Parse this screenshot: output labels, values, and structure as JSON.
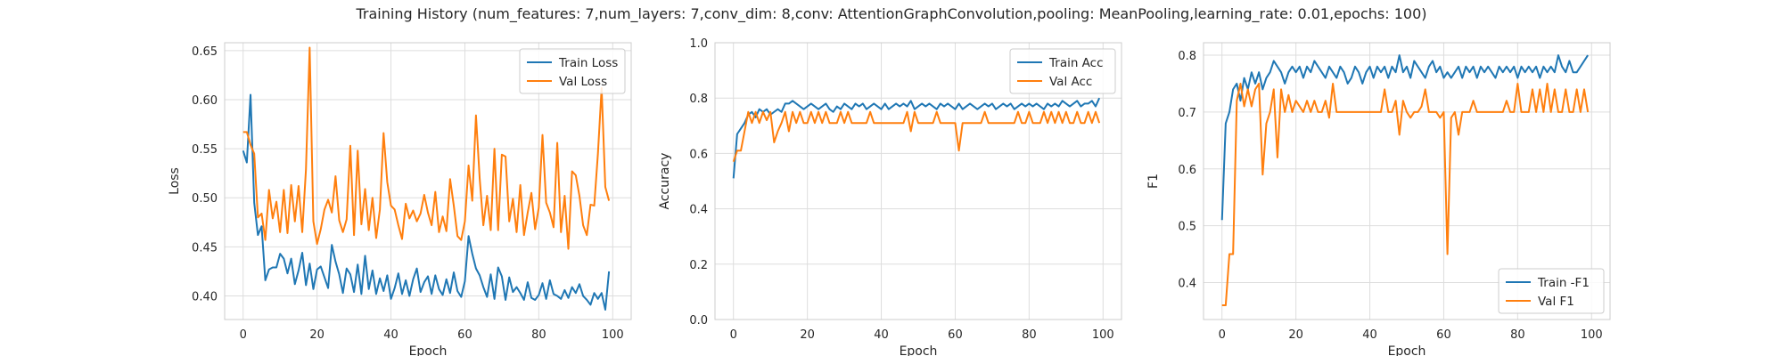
{
  "figure": {
    "title": "Training History (num_features: 7,num_layers: 7,conv_dim: 8,conv: AttentionGraphConvolution,pooling: MeanPooling,learning_rate: 0.01,epochs: 100)",
    "colors": {
      "blue": "#1f77b4",
      "orange": "#ff7f0e",
      "grid": "#dddddd",
      "spine": "#cccccc"
    }
  },
  "chart_data": [
    {
      "type": "line",
      "title": "",
      "xlabel": "Epoch",
      "ylabel": "Loss",
      "xlim": [
        -5,
        105
      ],
      "ylim": [
        0.376,
        0.658
      ],
      "xticks": [
        0,
        20,
        40,
        60,
        80,
        100
      ],
      "yticks": [
        0.4,
        0.45,
        0.5,
        0.55,
        0.6,
        0.65
      ],
      "ytick_decimals": 2,
      "grid": true,
      "legend_position": "top-right",
      "series": [
        {
          "name": "Train Loss",
          "color": "#1f77b4",
          "values": [
            0.548,
            0.536,
            0.605,
            0.495,
            0.462,
            0.471,
            0.416,
            0.427,
            0.429,
            0.429,
            0.443,
            0.438,
            0.423,
            0.438,
            0.412,
            0.426,
            0.444,
            0.411,
            0.433,
            0.407,
            0.427,
            0.43,
            0.419,
            0.408,
            0.452,
            0.435,
            0.422,
            0.403,
            0.428,
            0.422,
            0.404,
            0.432,
            0.402,
            0.441,
            0.407,
            0.426,
            0.402,
            0.418,
            0.405,
            0.421,
            0.397,
            0.408,
            0.423,
            0.402,
            0.416,
            0.4,
            0.417,
            0.428,
            0.404,
            0.414,
            0.42,
            0.402,
            0.421,
            0.407,
            0.401,
            0.417,
            0.403,
            0.424,
            0.405,
            0.399,
            0.415,
            0.461,
            0.443,
            0.428,
            0.421,
            0.409,
            0.399,
            0.422,
            0.397,
            0.429,
            0.42,
            0.396,
            0.419,
            0.404,
            0.409,
            0.403,
            0.396,
            0.414,
            0.398,
            0.396,
            0.401,
            0.413,
            0.397,
            0.416,
            0.402,
            0.4,
            0.397,
            0.406,
            0.398,
            0.409,
            0.403,
            0.412,
            0.4,
            0.396,
            0.391,
            0.403,
            0.397,
            0.403,
            0.386,
            0.425
          ]
        },
        {
          "name": "Val Loss",
          "color": "#ff7f0e",
          "values": [
            0.567,
            0.567,
            0.554,
            0.545,
            0.48,
            0.484,
            0.457,
            0.508,
            0.479,
            0.496,
            0.465,
            0.508,
            0.464,
            0.513,
            0.476,
            0.512,
            0.465,
            0.529,
            0.653,
            0.476,
            0.453,
            0.468,
            0.488,
            0.498,
            0.485,
            0.522,
            0.477,
            0.465,
            0.478,
            0.553,
            0.462,
            0.548,
            0.473,
            0.509,
            0.467,
            0.5,
            0.459,
            0.488,
            0.566,
            0.516,
            0.492,
            0.488,
            0.472,
            0.458,
            0.494,
            0.479,
            0.487,
            0.476,
            0.484,
            0.503,
            0.485,
            0.472,
            0.506,
            0.465,
            0.481,
            0.466,
            0.519,
            0.492,
            0.461,
            0.457,
            0.476,
            0.533,
            0.497,
            0.584,
            0.52,
            0.472,
            0.502,
            0.467,
            0.55,
            0.467,
            0.544,
            0.542,
            0.476,
            0.499,
            0.465,
            0.513,
            0.462,
            0.485,
            0.505,
            0.468,
            0.49,
            0.564,
            0.495,
            0.485,
            0.47,
            0.556,
            0.465,
            0.502,
            0.448,
            0.527,
            0.523,
            0.502,
            0.472,
            0.462,
            0.493,
            0.492,
            0.545,
            0.612,
            0.511,
            0.497
          ]
        }
      ]
    },
    {
      "type": "line",
      "title": "",
      "xlabel": "Epoch",
      "ylabel": "Accuracy",
      "xlim": [
        -5,
        105
      ],
      "ylim": [
        0,
        1
      ],
      "xticks": [
        0,
        20,
        40,
        60,
        80,
        100
      ],
      "yticks": [
        0.0,
        0.2,
        0.4,
        0.6,
        0.8,
        1.0
      ],
      "ytick_decimals": 1,
      "grid": true,
      "legend_position": "top-right",
      "series": [
        {
          "name": "Train Acc",
          "color": "#1f77b4",
          "values": [
            0.51,
            0.67,
            0.69,
            0.71,
            0.74,
            0.75,
            0.73,
            0.76,
            0.75,
            0.76,
            0.74,
            0.75,
            0.76,
            0.75,
            0.78,
            0.78,
            0.79,
            0.78,
            0.77,
            0.76,
            0.77,
            0.78,
            0.77,
            0.76,
            0.77,
            0.78,
            0.76,
            0.75,
            0.77,
            0.76,
            0.78,
            0.77,
            0.76,
            0.78,
            0.77,
            0.78,
            0.76,
            0.77,
            0.78,
            0.77,
            0.76,
            0.78,
            0.76,
            0.77,
            0.78,
            0.77,
            0.78,
            0.77,
            0.79,
            0.76,
            0.77,
            0.78,
            0.77,
            0.78,
            0.77,
            0.76,
            0.78,
            0.77,
            0.78,
            0.77,
            0.76,
            0.78,
            0.76,
            0.77,
            0.78,
            0.77,
            0.76,
            0.77,
            0.78,
            0.77,
            0.78,
            0.76,
            0.77,
            0.78,
            0.77,
            0.78,
            0.76,
            0.77,
            0.78,
            0.77,
            0.78,
            0.77,
            0.78,
            0.77,
            0.76,
            0.78,
            0.77,
            0.78,
            0.77,
            0.79,
            0.78,
            0.77,
            0.78,
            0.79,
            0.77,
            0.78,
            0.78,
            0.79,
            0.77,
            0.8
          ]
        },
        {
          "name": "Val Acc",
          "color": "#ff7f0e",
          "values": [
            0.57,
            0.61,
            0.61,
            0.68,
            0.75,
            0.71,
            0.75,
            0.71,
            0.75,
            0.72,
            0.75,
            0.64,
            0.68,
            0.71,
            0.75,
            0.68,
            0.75,
            0.71,
            0.75,
            0.71,
            0.71,
            0.75,
            0.71,
            0.75,
            0.71,
            0.75,
            0.71,
            0.71,
            0.71,
            0.75,
            0.71,
            0.75,
            0.71,
            0.71,
            0.71,
            0.71,
            0.71,
            0.75,
            0.71,
            0.71,
            0.71,
            0.71,
            0.71,
            0.71,
            0.71,
            0.71,
            0.71,
            0.75,
            0.68,
            0.75,
            0.71,
            0.71,
            0.71,
            0.71,
            0.71,
            0.75,
            0.71,
            0.71,
            0.71,
            0.71,
            0.71,
            0.61,
            0.71,
            0.71,
            0.71,
            0.71,
            0.71,
            0.71,
            0.75,
            0.71,
            0.71,
            0.71,
            0.71,
            0.71,
            0.71,
            0.71,
            0.71,
            0.75,
            0.71,
            0.71,
            0.75,
            0.71,
            0.71,
            0.71,
            0.75,
            0.71,
            0.75,
            0.71,
            0.75,
            0.71,
            0.75,
            0.71,
            0.71,
            0.75,
            0.71,
            0.71,
            0.75,
            0.71,
            0.75,
            0.71
          ]
        }
      ]
    },
    {
      "type": "line",
      "title": "",
      "xlabel": "Epoch",
      "ylabel": "F1",
      "xlim": [
        -5,
        105
      ],
      "ylim": [
        0.335,
        0.822
      ],
      "xticks": [
        0,
        20,
        40,
        60,
        80,
        100
      ],
      "yticks": [
        0.4,
        0.5,
        0.6,
        0.7,
        0.8
      ],
      "ytick_decimals": 1,
      "grid": true,
      "legend_position": "bottom-right",
      "series": [
        {
          "name": "Train -F1",
          "color": "#1f77b4",
          "values": [
            0.51,
            0.68,
            0.7,
            0.74,
            0.75,
            0.72,
            0.76,
            0.74,
            0.77,
            0.75,
            0.77,
            0.74,
            0.76,
            0.77,
            0.79,
            0.78,
            0.77,
            0.75,
            0.77,
            0.78,
            0.77,
            0.78,
            0.76,
            0.78,
            0.77,
            0.79,
            0.78,
            0.77,
            0.76,
            0.78,
            0.77,
            0.76,
            0.78,
            0.77,
            0.75,
            0.76,
            0.78,
            0.77,
            0.75,
            0.77,
            0.78,
            0.76,
            0.78,
            0.77,
            0.78,
            0.76,
            0.78,
            0.77,
            0.8,
            0.77,
            0.78,
            0.76,
            0.79,
            0.78,
            0.77,
            0.76,
            0.78,
            0.79,
            0.77,
            0.78,
            0.76,
            0.77,
            0.76,
            0.77,
            0.78,
            0.76,
            0.78,
            0.77,
            0.78,
            0.76,
            0.78,
            0.77,
            0.78,
            0.77,
            0.76,
            0.78,
            0.77,
            0.78,
            0.77,
            0.78,
            0.76,
            0.78,
            0.77,
            0.78,
            0.77,
            0.78,
            0.76,
            0.78,
            0.77,
            0.78,
            0.77,
            0.8,
            0.78,
            0.77,
            0.79,
            0.77,
            0.77,
            0.78,
            0.79,
            0.8
          ]
        },
        {
          "name": "Val F1",
          "color": "#ff7f0e",
          "values": [
            0.36,
            0.36,
            0.45,
            0.45,
            0.72,
            0.75,
            0.71,
            0.74,
            0.71,
            0.74,
            0.75,
            0.59,
            0.68,
            0.7,
            0.74,
            0.62,
            0.74,
            0.7,
            0.73,
            0.7,
            0.72,
            0.71,
            0.7,
            0.72,
            0.7,
            0.72,
            0.7,
            0.7,
            0.72,
            0.69,
            0.75,
            0.7,
            0.7,
            0.7,
            0.7,
            0.7,
            0.7,
            0.7,
            0.7,
            0.7,
            0.7,
            0.7,
            0.7,
            0.7,
            0.74,
            0.7,
            0.7,
            0.72,
            0.66,
            0.72,
            0.7,
            0.69,
            0.7,
            0.7,
            0.71,
            0.74,
            0.7,
            0.7,
            0.7,
            0.69,
            0.7,
            0.45,
            0.69,
            0.7,
            0.66,
            0.7,
            0.7,
            0.7,
            0.72,
            0.7,
            0.7,
            0.7,
            0.7,
            0.7,
            0.7,
            0.7,
            0.7,
            0.72,
            0.7,
            0.7,
            0.75,
            0.7,
            0.7,
            0.7,
            0.74,
            0.7,
            0.74,
            0.7,
            0.75,
            0.7,
            0.74,
            0.7,
            0.7,
            0.74,
            0.7,
            0.7,
            0.74,
            0.7,
            0.74,
            0.7
          ]
        }
      ]
    }
  ]
}
